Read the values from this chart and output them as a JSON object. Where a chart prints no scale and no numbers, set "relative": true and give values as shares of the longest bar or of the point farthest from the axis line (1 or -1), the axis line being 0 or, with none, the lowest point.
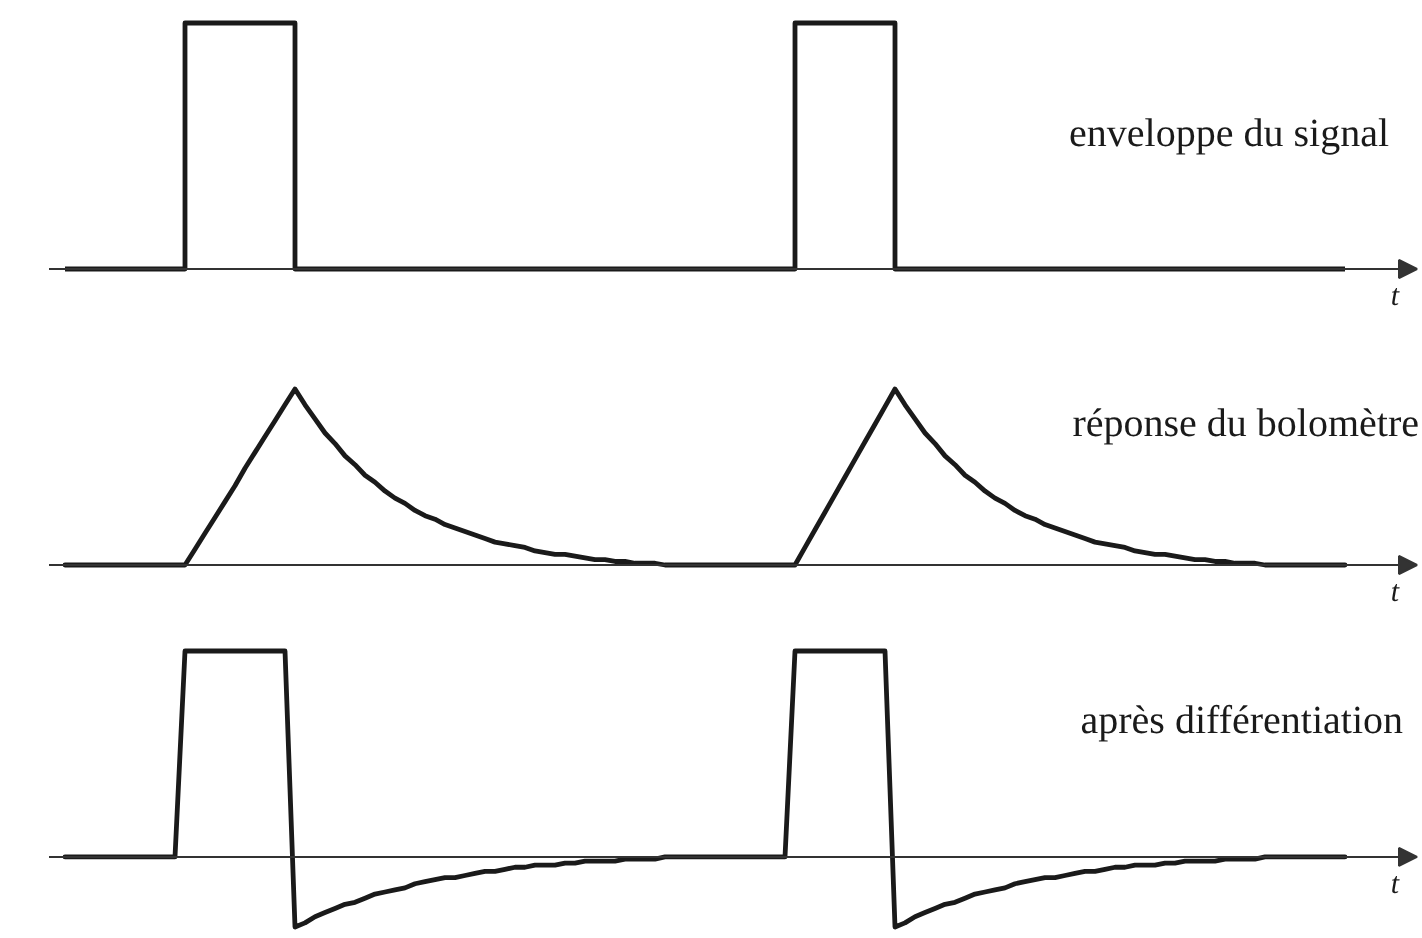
{
  "chart_data": [
    {
      "type": "step",
      "title": "enveloppe du signal",
      "xlabel": "t",
      "relative": true,
      "categories": [
        null,
        null,
        null,
        null,
        null,
        null,
        null,
        null,
        null,
        null,
        null,
        null,
        null,
        null,
        null,
        null,
        null,
        null,
        null,
        null,
        null,
        null,
        null,
        null,
        null,
        null,
        null,
        null,
        null,
        null,
        null,
        null,
        null,
        null,
        null,
        null,
        null,
        null,
        null,
        null,
        null,
        null,
        null,
        null,
        null,
        null,
        null,
        null,
        null,
        null,
        null,
        null,
        null,
        null,
        null,
        null,
        null,
        null,
        null,
        null,
        null,
        null,
        null,
        null,
        null,
        null,
        null,
        null,
        null,
        null,
        null,
        null,
        null,
        null,
        null,
        null,
        null,
        null,
        null,
        null,
        null,
        null,
        null,
        null,
        null,
        null,
        null,
        null,
        null,
        null,
        null,
        null,
        null,
        null,
        null,
        null,
        null,
        null,
        null,
        null,
        null,
        null,
        null,
        null,
        null,
        null,
        null,
        null,
        null,
        null,
        null,
        null,
        null,
        null,
        null,
        null,
        null,
        null,
        null,
        null,
        null,
        null,
        null,
        null,
        null,
        null,
        null,
        null,
        null
      ],
      "series": [
        {
          "color": "#1a1a1a",
          "values": [
            0,
            0,
            0,
            0,
            0,
            0,
            0,
            0,
            0,
            0,
            0,
            0,
            1,
            1,
            1,
            1,
            1,
            1,
            1,
            1,
            1,
            1,
            1,
            0,
            0,
            0,
            0,
            0,
            0,
            0,
            0,
            0,
            0,
            0,
            0,
            0,
            0,
            0,
            0,
            0,
            0,
            0,
            0,
            0,
            0,
            0,
            0,
            0,
            0,
            0,
            0,
            0,
            0,
            0,
            0,
            0,
            0,
            0,
            0,
            0,
            0,
            0,
            0,
            0,
            0,
            0,
            0,
            0,
            0,
            0,
            0,
            0,
            0,
            1,
            1,
            1,
            1,
            1,
            1,
            1,
            1,
            1,
            1,
            0,
            0,
            0,
            0,
            0,
            0,
            0,
            0,
            0,
            0,
            0,
            0,
            0,
            0,
            0,
            0,
            0,
            0,
            0,
            0,
            0,
            0,
            0,
            0,
            0,
            0,
            0,
            0,
            0,
            0,
            0,
            0,
            0,
            0,
            0,
            0,
            0,
            0,
            0,
            0,
            0,
            0,
            0,
            0,
            0,
            0
          ]
        }
      ]
    },
    {
      "type": "line",
      "title": "réponse du bolomètre",
      "xlabel": "t",
      "relative": true,
      "categories": [
        null,
        null,
        null,
        null,
        null,
        null,
        null,
        null,
        null,
        null,
        null,
        null,
        null,
        null,
        null,
        null,
        null,
        null,
        null,
        null,
        null,
        null,
        null,
        null,
        null,
        null,
        null,
        null,
        null,
        null,
        null,
        null,
        null,
        null,
        null,
        null,
        null,
        null,
        null,
        null,
        null,
        null,
        null,
        null,
        null,
        null,
        null,
        null,
        null,
        null,
        null,
        null,
        null,
        null,
        null,
        null,
        null,
        null,
        null,
        null,
        null,
        null,
        null,
        null,
        null,
        null,
        null,
        null,
        null,
        null,
        null,
        null,
        null,
        null,
        null,
        null,
        null,
        null,
        null,
        null,
        null,
        null,
        null,
        null,
        null,
        null,
        null,
        null,
        null,
        null,
        null,
        null,
        null,
        null,
        null,
        null,
        null,
        null,
        null,
        null,
        null,
        null,
        null,
        null,
        null,
        null,
        null,
        null,
        null,
        null,
        null,
        null,
        null,
        null,
        null,
        null,
        null,
        null,
        null,
        null,
        null,
        null,
        null,
        null,
        null,
        null,
        null,
        null,
        null
      ],
      "series": [
        {
          "color": "#1a1a1a",
          "values": [
            0,
            0,
            0,
            0,
            0,
            0,
            0,
            0,
            0,
            0,
            0,
            0,
            0,
            0.09,
            0.18,
            0.27,
            0.36,
            0.45,
            0.55,
            0.64,
            0.73,
            0.82,
            0.91,
            1,
            0.91,
            0.83,
            0.75,
            0.69,
            0.62,
            0.57,
            0.51,
            0.47,
            0.42,
            0.38,
            0.35,
            0.31,
            0.28,
            0.26,
            0.23,
            0.21,
            0.19,
            0.17,
            0.15,
            0.13,
            0.12,
            0.11,
            0.1,
            0.08,
            0.07,
            0.06,
            0.06,
            0.05,
            0.04,
            0.03,
            0.03,
            0.02,
            0.02,
            0.01,
            0.01,
            0.01,
            0,
            0,
            0,
            0,
            0,
            0,
            0,
            0,
            0,
            0,
            0,
            0,
            0,
            0,
            0.1,
            0.2,
            0.3,
            0.4,
            0.5,
            0.6,
            0.7,
            0.8,
            0.9,
            1,
            0.91,
            0.83,
            0.75,
            0.69,
            0.62,
            0.57,
            0.51,
            0.47,
            0.42,
            0.38,
            0.35,
            0.31,
            0.28,
            0.26,
            0.23,
            0.21,
            0.19,
            0.17,
            0.15,
            0.13,
            0.12,
            0.11,
            0.1,
            0.08,
            0.07,
            0.06,
            0.06,
            0.05,
            0.04,
            0.03,
            0.03,
            0.02,
            0.02,
            0.01,
            0.01,
            0.01,
            0,
            0,
            0,
            0,
            0,
            0,
            0,
            0,
            0
          ]
        }
      ]
    },
    {
      "type": "line",
      "title": "après différentiation",
      "xlabel": "t",
      "relative": true,
      "categories": [
        null,
        null,
        null,
        null,
        null,
        null,
        null,
        null,
        null,
        null,
        null,
        null,
        null,
        null,
        null,
        null,
        null,
        null,
        null,
        null,
        null,
        null,
        null,
        null,
        null,
        null,
        null,
        null,
        null,
        null,
        null,
        null,
        null,
        null,
        null,
        null,
        null,
        null,
        null,
        null,
        null,
        null,
        null,
        null,
        null,
        null,
        null,
        null,
        null,
        null,
        null,
        null,
        null,
        null,
        null,
        null,
        null,
        null,
        null,
        null,
        null,
        null,
        null,
        null,
        null,
        null,
        null,
        null,
        null,
        null,
        null,
        null,
        null,
        null,
        null,
        null,
        null,
        null,
        null,
        null,
        null,
        null,
        null,
        null,
        null,
        null,
        null,
        null,
        null,
        null,
        null,
        null,
        null,
        null,
        null,
        null,
        null,
        null,
        null,
        null,
        null,
        null,
        null,
        null,
        null,
        null,
        null,
        null,
        null,
        null,
        null,
        null,
        null,
        null,
        null,
        null,
        null,
        null,
        null,
        null,
        null,
        null,
        null,
        null,
        null,
        null,
        null,
        null,
        null
      ],
      "series": [
        {
          "color": "#1a1a1a",
          "values": [
            0,
            0,
            0,
            0,
            0,
            0,
            0,
            0,
            0,
            0,
            0,
            0,
            1,
            1,
            1,
            1,
            1,
            1,
            1,
            1,
            1,
            1,
            1,
            -0.34,
            -0.32,
            -0.29,
            -0.27,
            -0.25,
            -0.23,
            -0.22,
            -0.2,
            -0.18,
            -0.17,
            -0.16,
            -0.15,
            -0.13,
            -0.12,
            -0.11,
            -0.1,
            -0.1,
            -0.09,
            -0.08,
            -0.07,
            -0.07,
            -0.06,
            -0.05,
            -0.05,
            -0.04,
            -0.04,
            -0.04,
            -0.03,
            -0.03,
            -0.02,
            -0.02,
            -0.02,
            -0.02,
            -0.01,
            -0.01,
            -0.01,
            -0.01,
            0,
            0,
            0,
            0,
            0,
            0,
            0,
            0,
            0,
            0,
            0,
            0,
            0,
            1,
            1,
            1,
            1,
            1,
            1,
            1,
            1,
            1,
            1,
            -0.34,
            -0.32,
            -0.29,
            -0.27,
            -0.25,
            -0.23,
            -0.22,
            -0.2,
            -0.18,
            -0.17,
            -0.16,
            -0.15,
            -0.13,
            -0.12,
            -0.11,
            -0.1,
            -0.1,
            -0.09,
            -0.08,
            -0.07,
            -0.07,
            -0.06,
            -0.05,
            -0.05,
            -0.04,
            -0.04,
            -0.04,
            -0.03,
            -0.03,
            -0.02,
            -0.02,
            -0.02,
            -0.02,
            -0.01,
            -0.01,
            -0.01,
            -0.01,
            0,
            0,
            0,
            0,
            0,
            0,
            0,
            0,
            0
          ]
        }
      ]
    }
  ]
}
